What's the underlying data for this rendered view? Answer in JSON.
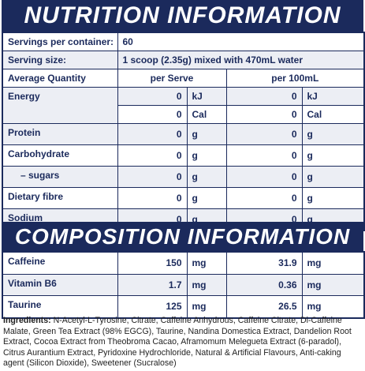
{
  "nutrition_title": "NUTRITION INFORMATION",
  "servings": {
    "label": "Servings per container:",
    "value": "60"
  },
  "serving_size": {
    "label": "Serving size:",
    "value": "1 scoop (2.35g) mixed with 470mL water"
  },
  "columns": {
    "label": "Average Quantity",
    "per_serve": "per Serve",
    "per_100ml": "per 100mL"
  },
  "nutrients": [
    {
      "label": "Energy",
      "rows": [
        {
          "serve": 0,
          "serve_unit": "kJ",
          "per100": 0,
          "per100_unit": "kJ"
        },
        {
          "serve": 0,
          "serve_unit": "Cal",
          "per100": 0,
          "per100_unit": "Cal"
        }
      ]
    },
    {
      "label": "Protein",
      "rows": [
        {
          "serve": 0,
          "serve_unit": "g",
          "per100": 0,
          "per100_unit": "g"
        }
      ]
    },
    {
      "label": "Carbohydrate",
      "rows": [
        {
          "serve": 0,
          "serve_unit": "g",
          "per100": 0,
          "per100_unit": "g"
        }
      ]
    },
    {
      "label": "– sugars",
      "rows": [
        {
          "serve": 0,
          "serve_unit": "g",
          "per100": 0,
          "per100_unit": "g"
        }
      ]
    },
    {
      "label": "Dietary fibre",
      "rows": [
        {
          "serve": 0,
          "serve_unit": "g",
          "per100": 0,
          "per100_unit": "g"
        }
      ]
    },
    {
      "label": "Sodium",
      "rows": [
        {
          "serve": 0,
          "serve_unit": "g",
          "per100": 0,
          "per100_unit": "g"
        }
      ]
    }
  ],
  "composition_title": "COMPOSITION INFORMATION",
  "composition": [
    {
      "label": "Caffeine",
      "rows": [
        {
          "serve": 150,
          "serve_unit": "mg",
          "per100": 31.9,
          "per100_unit": "mg"
        }
      ]
    },
    {
      "label": "Vitamin B6",
      "rows": [
        {
          "serve": 1.7,
          "serve_unit": "mg",
          "per100": 0.36,
          "per100_unit": "mg"
        }
      ]
    },
    {
      "label": "Taurine",
      "rows": [
        {
          "serve": 125,
          "serve_unit": "mg",
          "per100": 26.5,
          "per100_unit": "mg"
        }
      ]
    }
  ],
  "ingredients": {
    "label": "Ingredients:",
    "text": "N-Acetyl-L-Tyrosine, Citrate, Caffeine Anhydrous, Caffeine Citrate, Di-Caffeine Malate, Green Tea Extract (98% EGCG), Taurine, Nandina Domestica Extract, Dandelion Root Extract, Cocoa Extract from Theobroma Cacao, Aframomum Melegueta Extract (6-paradol), Citrus Aurantium Extract, Pyridoxine Hydrochloride, Natural & Artificial Flavours, Anti-caking agent (Silicon Dioxide), Sweetener (Sucralose)"
  }
}
